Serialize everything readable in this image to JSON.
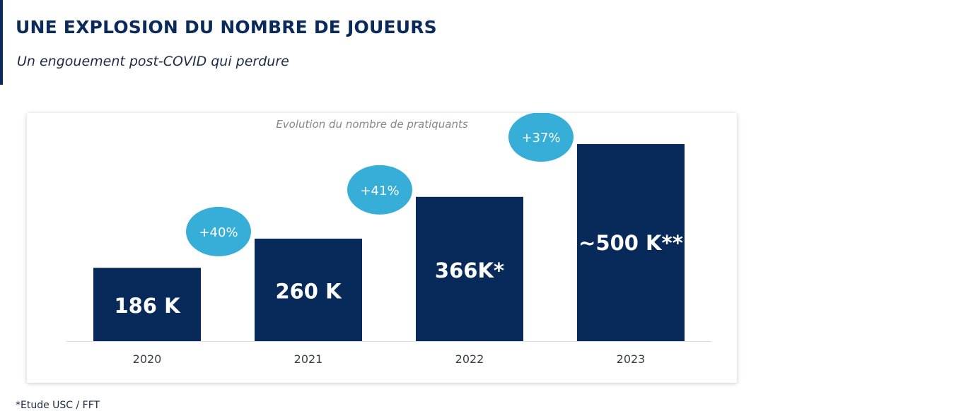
{
  "header": {
    "title": "UNE EXPLOSION DU NOMBRE DE JOUEURS",
    "subtitle": "Un engouement post-COVID qui perdure"
  },
  "colors": {
    "bar": "#072a5a",
    "bubble": "#36aed7",
    "title": "#0a2a5c",
    "axis": "#d9dde3"
  },
  "chart_data": {
    "type": "bar",
    "title": "Evolution du nombre de pratiquants",
    "categories": [
      "2020",
      "2021",
      "2022",
      "2023"
    ],
    "values": [
      186,
      260,
      366,
      500
    ],
    "unit": "K",
    "value_labels": [
      "186 K",
      "260 K",
      "366K*",
      "~500 K**"
    ],
    "growth_labels": [
      "+40%",
      "+41%",
      "+37%"
    ],
    "ylim": [
      0,
      500
    ],
    "grid": false,
    "legend": "none"
  },
  "footnote": "*Etude USC / FFT"
}
